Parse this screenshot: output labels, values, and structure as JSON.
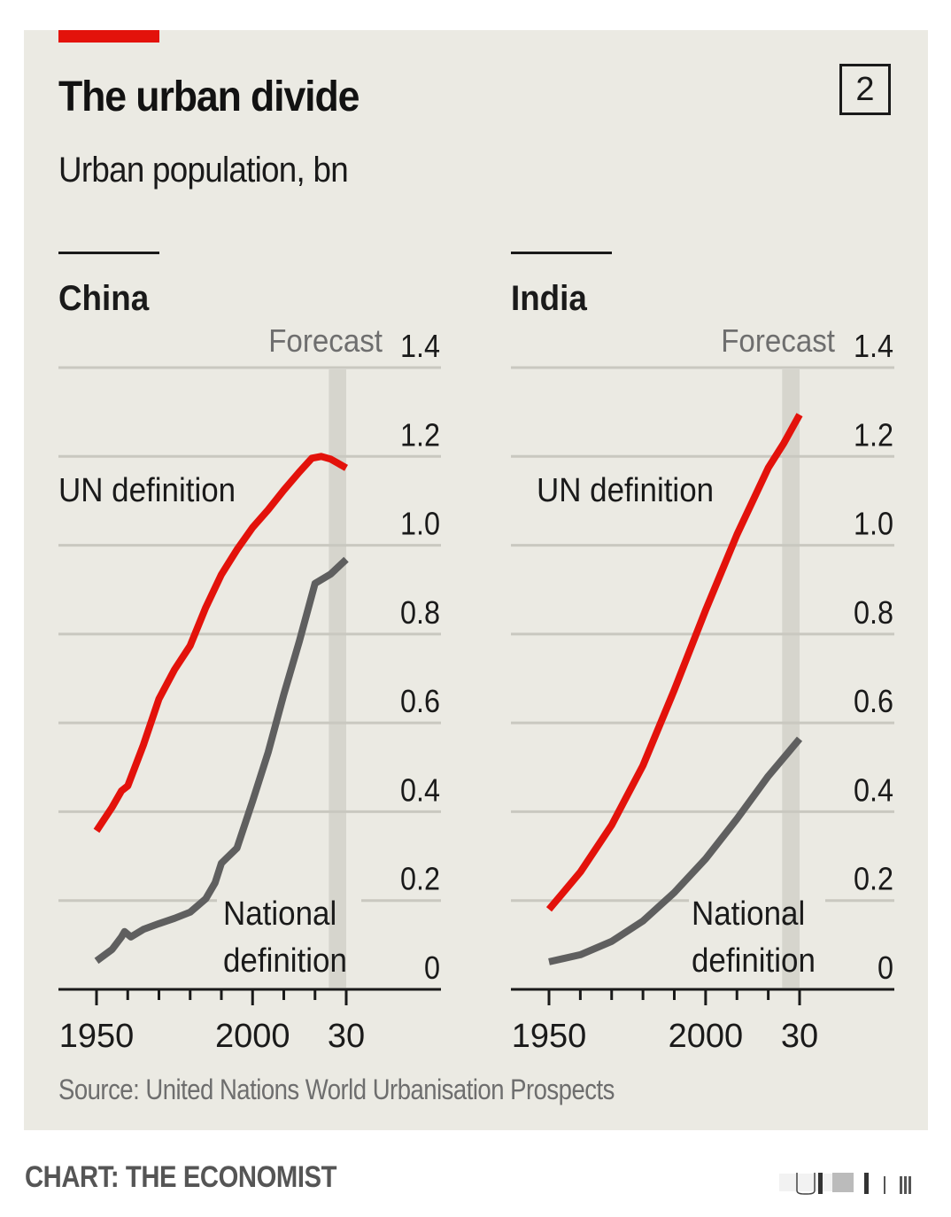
{
  "header": {
    "title": "The urban divide",
    "subtitle": "Urban population, bn",
    "chart_number": "2"
  },
  "footer": {
    "source": "Source: United Nations World Urbanisation Prospects",
    "credit": "CHART: THE ECONOMIST"
  },
  "colors": {
    "accent": "#e3120b",
    "background": "#ebeae3",
    "un_line": "#e3120b",
    "national_line": "#5f5f5f",
    "forecast_band": "#d6d5cd",
    "gridline": "#c9c8c0",
    "text": "#1a1a1a"
  },
  "chart_data": [
    {
      "type": "line",
      "title": "China",
      "forecast_label": "Forecast",
      "forecast_range": [
        2025,
        2030
      ],
      "ylim": [
        0,
        1.4
      ],
      "yticks": [
        0,
        0.2,
        0.4,
        0.6,
        0.8,
        1.0,
        1.2,
        1.4
      ],
      "ytick_labels": [
        "0",
        "0.2",
        "0.4",
        "0.6",
        "0.8",
        "1.0",
        "1.2",
        "1.4"
      ],
      "xlim": [
        1950,
        2030
      ],
      "xticks": [
        1950,
        1960,
        1970,
        1980,
        1990,
        2000,
        2010,
        2020,
        2030
      ],
      "xtick_labels": [
        "1950",
        "",
        "",
        "",
        "",
        "2000",
        "",
        "",
        "30"
      ],
      "grid": true,
      "series": [
        {
          "name": "UN definition",
          "label": "UN definition",
          "x": [
            1950,
            1955,
            1958,
            1960,
            1965,
            1970,
            1975,
            1980,
            1985,
            1990,
            1995,
            2000,
            2005,
            2010,
            2015,
            2019,
            2022,
            2025,
            2030
          ],
          "values": [
            0.357,
            0.41,
            0.447,
            0.458,
            0.55,
            0.654,
            0.72,
            0.774,
            0.86,
            0.934,
            0.99,
            1.04,
            1.08,
            1.124,
            1.165,
            1.196,
            1.2,
            1.194,
            1.174
          ]
        },
        {
          "name": "National definition",
          "label": "National definition",
          "x": [
            1950,
            1955,
            1958,
            1959,
            1961,
            1965,
            1970,
            1975,
            1980,
            1985,
            1988,
            1990,
            1995,
            2000,
            2005,
            2010,
            2015,
            2020,
            2025,
            2030
          ],
          "values": [
            0.064,
            0.09,
            0.118,
            0.13,
            0.118,
            0.135,
            0.148,
            0.16,
            0.174,
            0.204,
            0.24,
            0.284,
            0.318,
            0.424,
            0.534,
            0.664,
            0.784,
            0.914,
            0.935,
            0.968
          ]
        }
      ]
    },
    {
      "type": "line",
      "title": "India",
      "forecast_label": "Forecast",
      "forecast_range": [
        2025,
        2030
      ],
      "ylim": [
        0,
        1.4
      ],
      "yticks": [
        0,
        0.2,
        0.4,
        0.6,
        0.8,
        1.0,
        1.2,
        1.4
      ],
      "ytick_labels": [
        "0",
        "0.2",
        "0.4",
        "0.6",
        "0.8",
        "1.0",
        "1.2",
        "1.4"
      ],
      "xlim": [
        1950,
        2030
      ],
      "xticks": [
        1950,
        1960,
        1970,
        1980,
        1990,
        2000,
        2010,
        2020,
        2030
      ],
      "xtick_labels": [
        "1950",
        "",
        "",
        "",
        "",
        "2000",
        "",
        "",
        "30"
      ],
      "grid": true,
      "series": [
        {
          "name": "UN definition",
          "label": "UN definition",
          "x": [
            1950,
            1960,
            1970,
            1980,
            1990,
            2000,
            2010,
            2020,
            2025,
            2030
          ],
          "values": [
            0.18,
            0.264,
            0.37,
            0.504,
            0.674,
            0.854,
            1.024,
            1.174,
            1.23,
            1.294
          ]
        },
        {
          "name": "National definition",
          "label": "National definition",
          "x": [
            1950,
            1960,
            1970,
            1980,
            1990,
            2000,
            2010,
            2020,
            2030
          ],
          "values": [
            0.062,
            0.078,
            0.108,
            0.154,
            0.218,
            0.294,
            0.384,
            0.48,
            0.564
          ]
        }
      ]
    }
  ]
}
